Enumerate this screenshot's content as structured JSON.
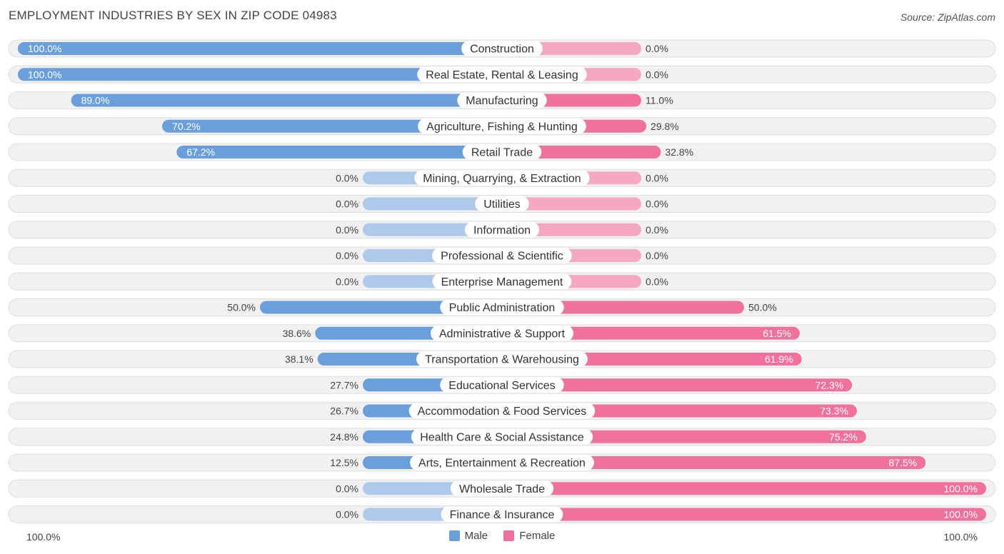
{
  "title": "EMPLOYMENT INDUSTRIES BY SEX IN ZIP CODE 04983",
  "source": "Source: ZipAtlas.com",
  "colors": {
    "male_strong": "#6a9fdd",
    "male_light": "#adc9ec",
    "female_strong": "#f0729a",
    "female_light": "#f6a8c1",
    "row_bg": "#f1f1f1",
    "row_border": "#dedede"
  },
  "axis": {
    "left_label": "100.0%",
    "right_label": "100.0%"
  },
  "legend": {
    "male": "Male",
    "female": "Female"
  },
  "chart_data": {
    "type": "bar",
    "orientation": "horizontal-diverging",
    "title": "EMPLOYMENT INDUSTRIES BY SEX IN ZIP CODE 04983",
    "categories": [
      "Construction",
      "Real Estate, Rental & Leasing",
      "Manufacturing",
      "Agriculture, Fishing & Hunting",
      "Retail Trade",
      "Mining, Quarrying, & Extraction",
      "Utilities",
      "Information",
      "Professional & Scientific",
      "Enterprise Management",
      "Public Administration",
      "Administrative & Support",
      "Transportation & Warehousing",
      "Educational Services",
      "Accommodation & Food Services",
      "Health Care & Social Assistance",
      "Arts, Entertainment & Recreation",
      "Wholesale Trade",
      "Finance & Insurance"
    ],
    "series": [
      {
        "name": "Male",
        "values": [
          100.0,
          100.0,
          89.0,
          70.2,
          67.2,
          0.0,
          0.0,
          0.0,
          0.0,
          0.0,
          50.0,
          38.6,
          38.1,
          27.7,
          26.7,
          24.8,
          12.5,
          0.0,
          0.0
        ],
        "labels": [
          "100.0%",
          "100.0%",
          "89.0%",
          "70.2%",
          "67.2%",
          "0.0%",
          "0.0%",
          "0.0%",
          "0.0%",
          "0.0%",
          "50.0%",
          "38.6%",
          "38.1%",
          "27.7%",
          "26.7%",
          "24.8%",
          "12.5%",
          "0.0%",
          "0.0%"
        ]
      },
      {
        "name": "Female",
        "values": [
          0.0,
          0.0,
          11.0,
          29.8,
          32.8,
          0.0,
          0.0,
          0.0,
          0.0,
          0.0,
          50.0,
          61.5,
          61.9,
          72.3,
          73.3,
          75.2,
          87.5,
          100.0,
          100.0
        ],
        "labels": [
          "0.0%",
          "0.0%",
          "11.0%",
          "29.8%",
          "32.8%",
          "0.0%",
          "0.0%",
          "0.0%",
          "0.0%",
          "0.0%",
          "50.0%",
          "61.5%",
          "61.9%",
          "72.3%",
          "73.3%",
          "75.2%",
          "87.5%",
          "100.0%",
          "100.0%"
        ]
      }
    ],
    "xlim": [
      -100,
      100
    ],
    "xlabel_left": "100.0%",
    "xlabel_right": "100.0%",
    "legend_position": "bottom-center"
  }
}
